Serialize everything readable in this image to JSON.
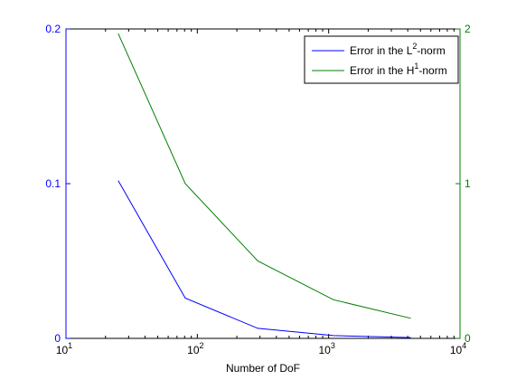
{
  "chart_data": {
    "type": "line",
    "xlabel": "Number of DoF",
    "xscale": "log",
    "xlim": [
      10,
      10000
    ],
    "x_tick_labels": [
      {
        "value": 10,
        "base": "10",
        "exp": "1"
      },
      {
        "value": 100,
        "base": "10",
        "exp": "2"
      },
      {
        "value": 1000,
        "base": "10",
        "exp": "3"
      },
      {
        "value": 10000,
        "base": "10",
        "exp": "4"
      }
    ],
    "left_axis": {
      "ylim": [
        0,
        0.2
      ],
      "ticks": [
        0,
        0.1,
        0.2
      ],
      "tick_labels": [
        "0",
        "0.1",
        "0.2"
      ],
      "color": "#0000ff"
    },
    "right_axis": {
      "ylim": [
        0,
        2
      ],
      "ticks": [
        0,
        1,
        2
      ],
      "tick_labels": [
        "0",
        "1",
        "2"
      ],
      "color": "#007f00"
    },
    "legend_position": "top-right",
    "series": [
      {
        "name_prefix": "Error in the L",
        "name_sup": "2",
        "name_suffix": "-norm",
        "axis": "left",
        "color": "#0000ff",
        "x": [
          25,
          81,
          289,
          1089,
          4225
        ],
        "y": [
          0.102,
          0.026,
          0.0065,
          0.0018,
          0.0005
        ]
      },
      {
        "name_prefix": "Error in the H",
        "name_sup": "1",
        "name_suffix": "-norm",
        "axis": "right",
        "color": "#007f00",
        "x": [
          25,
          81,
          289,
          1089,
          4225
        ],
        "y": [
          1.97,
          1.0,
          0.5,
          0.25,
          0.13
        ]
      }
    ]
  }
}
